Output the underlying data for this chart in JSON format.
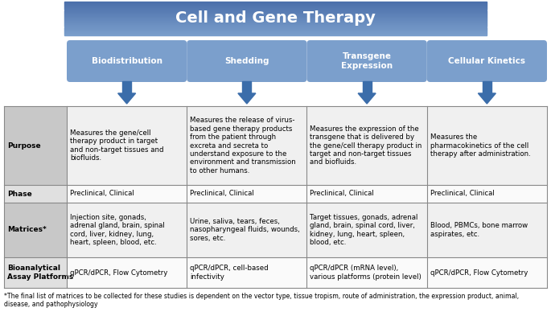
{
  "title": "Cell and Gene Therapy",
  "title_font_color": "#FFFFFF",
  "title_grad_top": "#4B6FAA",
  "title_grad_bot": "#7B9FCC",
  "columns": [
    "Biodistribution",
    "Shedding",
    "Transgene\nExpression",
    "Cellular Kinetics"
  ],
  "col_header_bg": "#7B9FCC",
  "col_header_font": "#FFFFFF",
  "row_labels": [
    "Purpose",
    "Phase",
    "Matrices*",
    "Bioanalytical\nAssay Platforms"
  ],
  "row_label_bg": [
    "#C8C8C8",
    "#E0E0E0",
    "#C8C8C8",
    "#E0E0E0"
  ],
  "cell_bg": [
    "#F0F0F0",
    "#FAFAFA",
    "#F0F0F0",
    "#FAFAFA"
  ],
  "table_data": [
    [
      "Measures the gene/cell\ntherapy product in target\nand non-target tissues and\nbiofluids.",
      "Measures the release of virus-\nbased gene therapy products\nfrom the patient through\nexcreta and secreta to\nunderstand exposure to the\nenvironment and transmission\nto other humans.",
      "Measures the expression of the\ntransgene that is delivered by\nthe gene/cell therapy product in\ntarget and non-target tissues\nand biofluids.",
      "Measures the\npharmacokinetics of the cell\ntherapy after administration."
    ],
    [
      "Preclinical, Clinical",
      "Preclinical, Clinical",
      "Preclinical, Clinical",
      "Preclinical, Clinical"
    ],
    [
      "Injection site, gonads,\nadrenal gland, brain, spinal\ncord, liver, kidney, lung,\nheart, spleen, blood, etc.",
      "Urine, saliva, tears, feces,\nnasopharyngeal fluids, wounds,\nsores, etc.",
      "Target tissues, gonads, adrenal\ngland, brain, spinal cord, liver,\nkidney, lung, heart, spleen,\nblood, etc.",
      "Blood, PBMCs, bone marrow\naspirates, etc."
    ],
    [
      "qPCR/dPCR, Flow Cytometry",
      "qPCR/dPCR, cell-based\ninfectivity",
      "qPCR/dPCR (mRNA level),\nvarious platforms (protein level)",
      "qPCR/dPCR, Flow Cytometry"
    ]
  ],
  "footnote": "*The final list of matrices to be collected for these studies is dependent on the vector type, tissue tropism, route of administration, the expression product, animal,\ndisease, and pathophysiology",
  "arrow_color": "#3B6DAA",
  "border_color": "#888888",
  "fig_w": 6.85,
  "fig_h": 3.93,
  "dpi": 100
}
